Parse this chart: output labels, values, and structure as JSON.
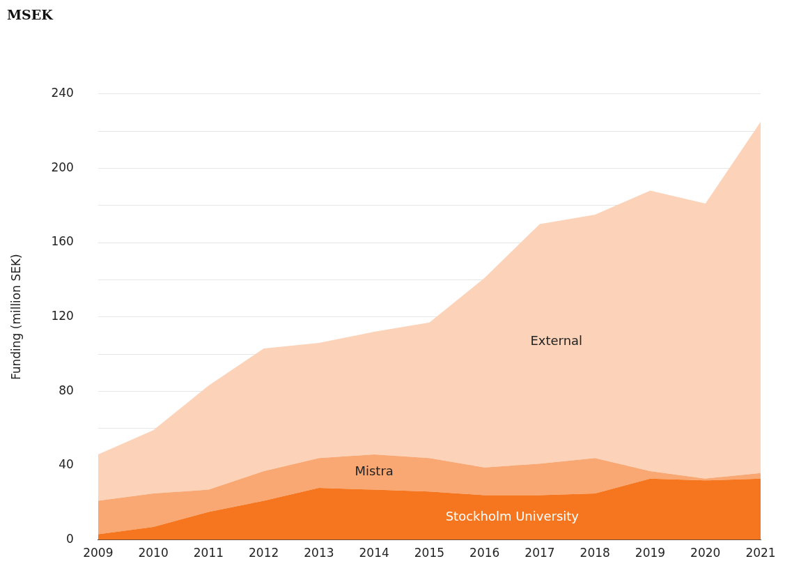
{
  "chart_data": {
    "type": "area",
    "title": "MSEK",
    "ylabel": "Funding (million SEK)",
    "categories": [
      "2009",
      "2010",
      "2011",
      "2012",
      "2013",
      "2014",
      "2015",
      "2016",
      "2017",
      "2018",
      "2019",
      "2020",
      "2021"
    ],
    "stacked": true,
    "series": [
      {
        "name": "Stockholm University",
        "color": "#f5761f",
        "values": [
          3,
          7,
          15,
          21,
          28,
          27,
          26,
          24,
          24,
          25,
          33,
          32,
          33
        ]
      },
      {
        "name": "Mistra",
        "color": "#f9a874",
        "values": [
          18,
          18,
          12,
          16,
          16,
          19,
          18,
          15,
          17,
          19,
          4,
          1,
          3
        ]
      },
      {
        "name": "External",
        "color": "#fcd3b8",
        "values": [
          25,
          34,
          56,
          66,
          62,
          66,
          73,
          102,
          129,
          131,
          151,
          148,
          189
        ]
      }
    ],
    "ylim": [
      0,
      240
    ],
    "yticks": [
      0,
      {
        "value": 20,
        "label": null
      },
      40,
      {
        "value": 60,
        "label": null
      },
      80,
      {
        "value": 100,
        "label": null
      },
      120,
      {
        "value": 140,
        "label": null
      },
      160,
      {
        "value": 180,
        "label": null
      },
      200,
      {
        "value": 220,
        "label": null
      },
      240
    ],
    "grid": "y",
    "legend": false
  }
}
